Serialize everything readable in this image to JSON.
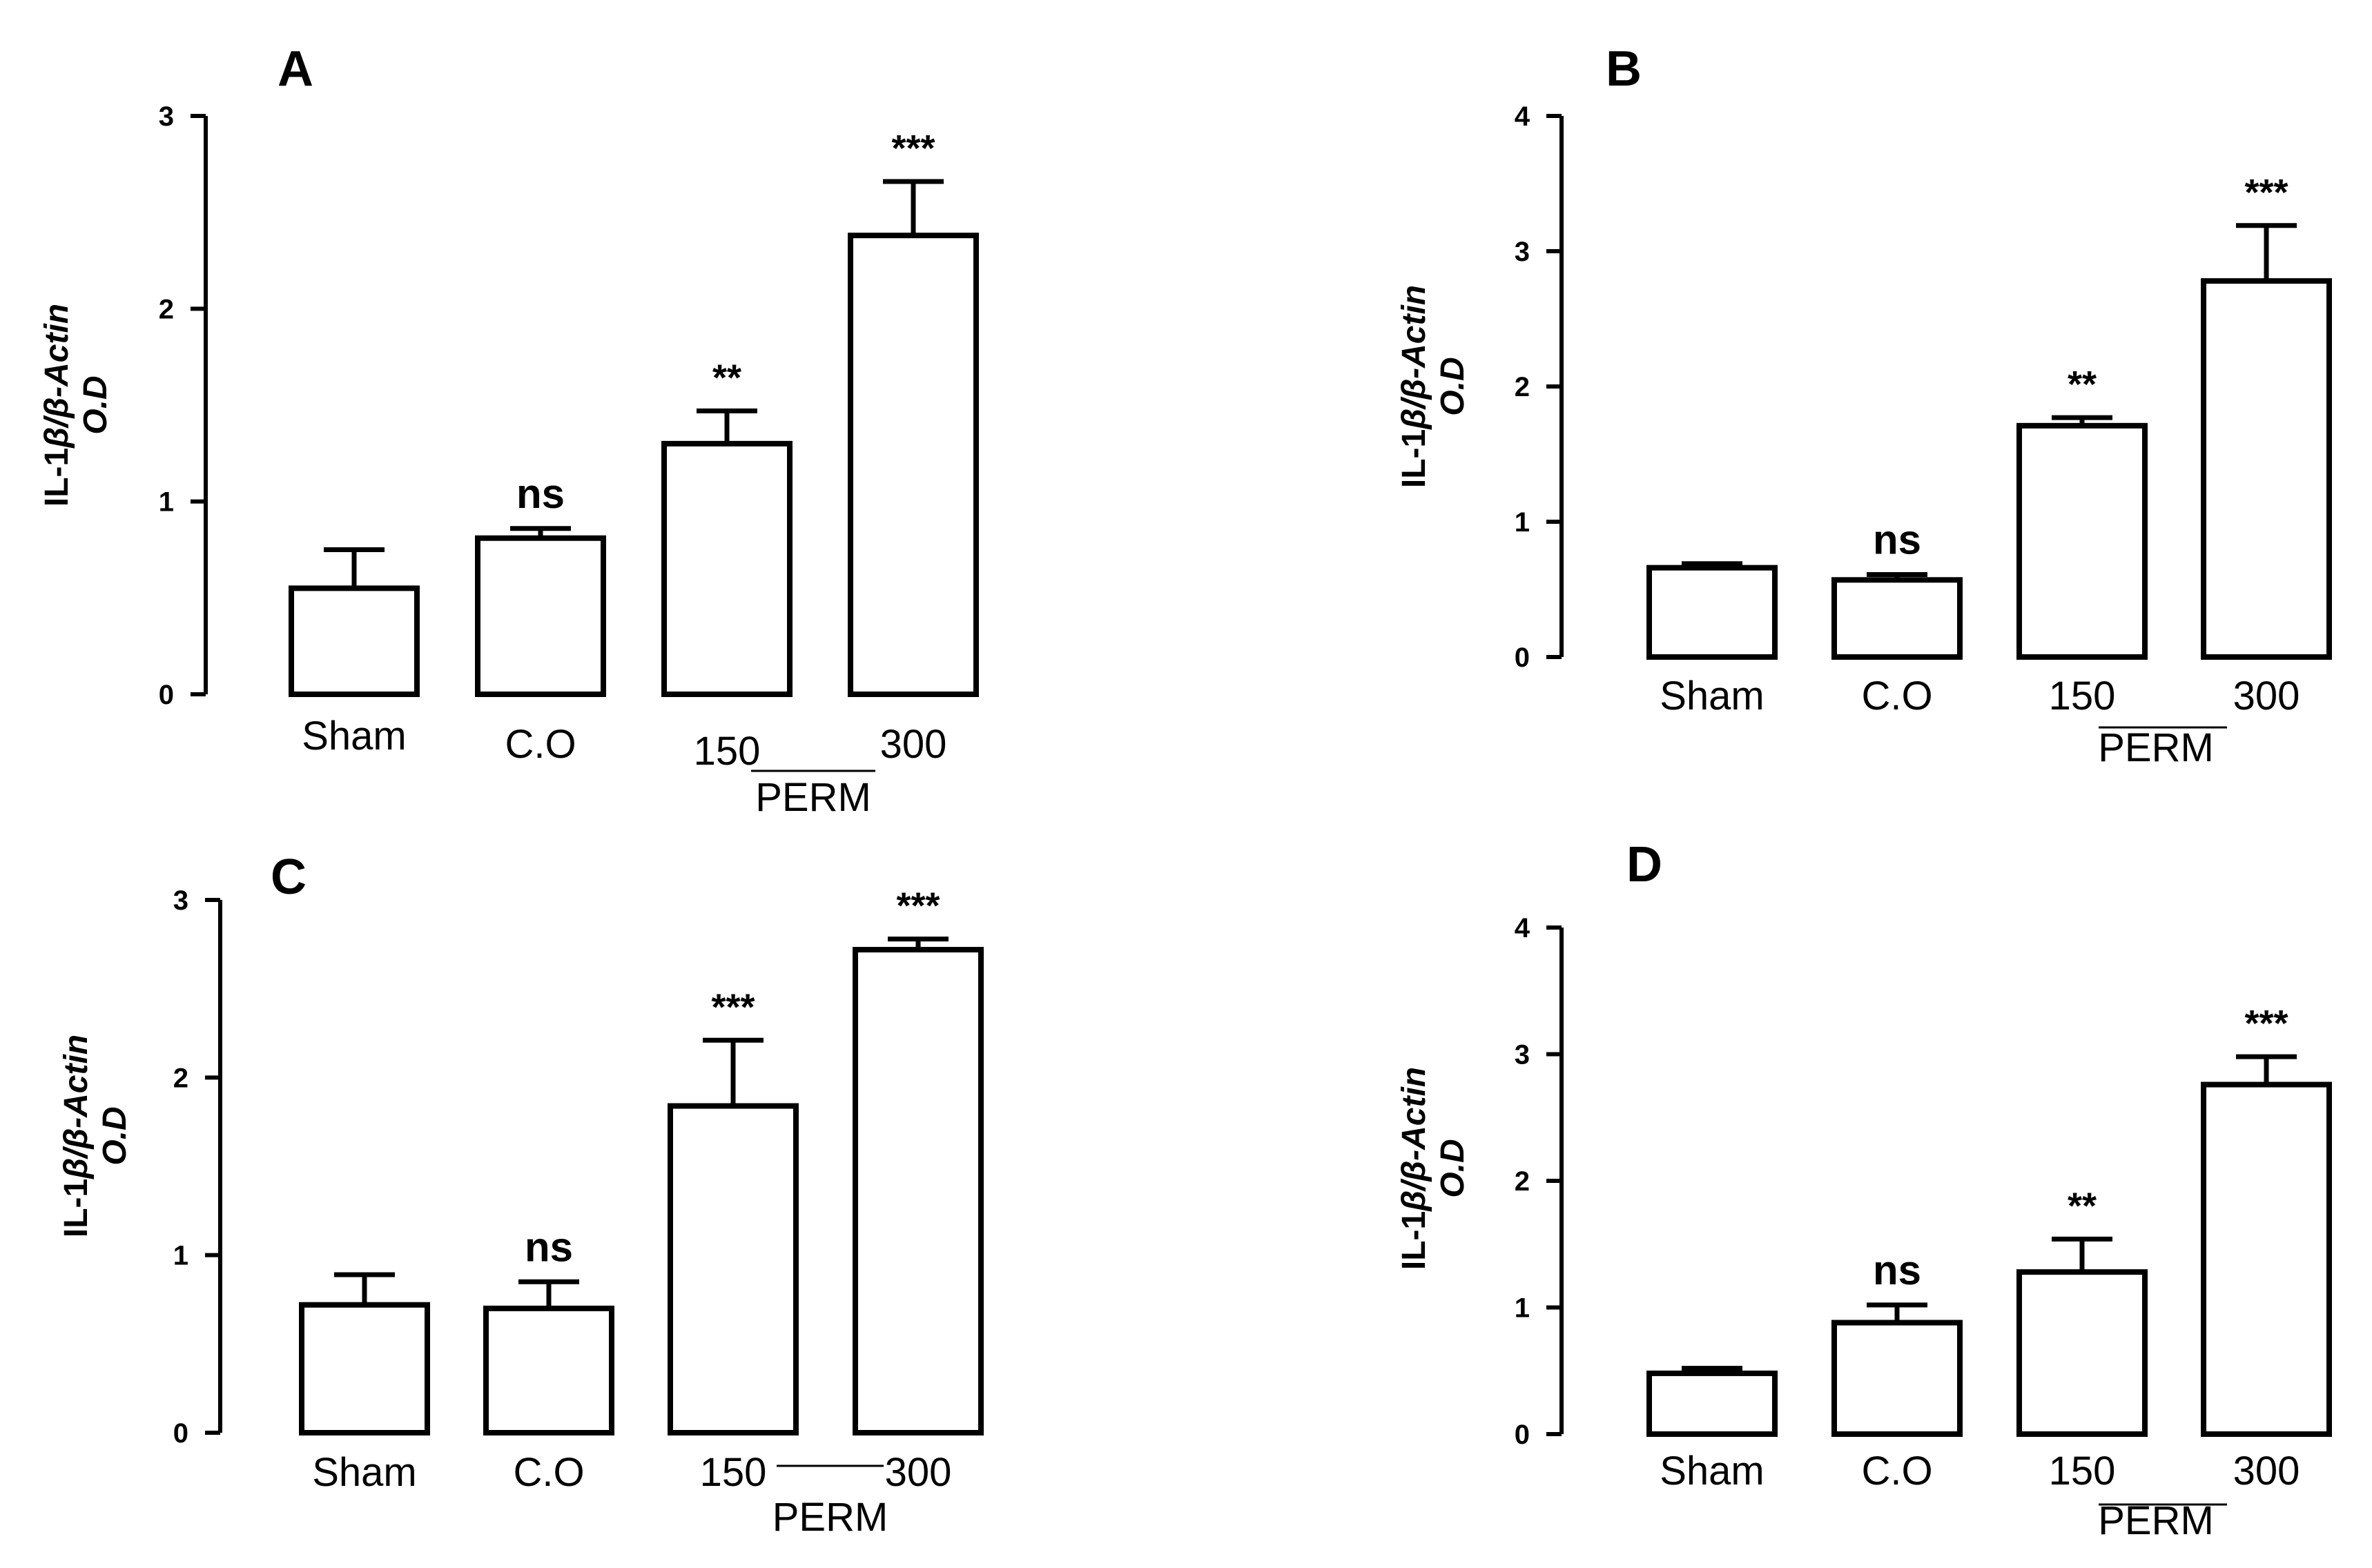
{
  "figure": {
    "group_label": "PERM"
  },
  "chart_data": [
    {
      "type": "bar",
      "panel": "A",
      "ylabel_line1": "IL-1β/β-Actin",
      "ylabel_line2": "O.D",
      "categories": [
        "Sham",
        "C.O",
        "150",
        "300"
      ],
      "values": [
        0.55,
        0.81,
        1.3,
        2.38
      ],
      "errors": [
        0.2,
        0.05,
        0.17,
        0.28
      ],
      "significance": [
        "",
        "ns",
        "**",
        "***"
      ],
      "ylim": [
        0,
        3
      ],
      "yticks": [
        "0",
        "1",
        "2",
        "3"
      ]
    },
    {
      "type": "bar",
      "panel": "B",
      "ylabel_line1": "IL-1β/β-Actin",
      "ylabel_line2": "O.D",
      "categories": [
        "Sham",
        "C.O",
        "150",
        "300"
      ],
      "values": [
        0.66,
        0.57,
        1.71,
        2.78
      ],
      "errors": [
        0.03,
        0.04,
        0.06,
        0.41
      ],
      "significance": [
        "",
        "ns",
        "**",
        "***"
      ],
      "ylim": [
        0,
        4
      ],
      "yticks": [
        "0",
        "1",
        "2",
        "3",
        "4"
      ]
    },
    {
      "type": "bar",
      "panel": "C",
      "ylabel_line1": "IL-1β/β-Actin",
      "ylabel_line2": "O.D",
      "categories": [
        "Sham",
        "C.O",
        "150",
        "300"
      ],
      "values": [
        0.72,
        0.7,
        1.84,
        2.72
      ],
      "errors": [
        0.17,
        0.15,
        0.37,
        0.06
      ],
      "significance": [
        "",
        "ns",
        "***",
        "***"
      ],
      "ylim": [
        0,
        3
      ],
      "yticks": [
        "0",
        "1",
        "2",
        "3"
      ]
    },
    {
      "type": "bar",
      "panel": "D",
      "ylabel_line1": "IL-1β/β-Actin",
      "ylabel_line2": "O.D",
      "categories": [
        "Sham",
        "C.O",
        "150",
        "300"
      ],
      "values": [
        0.48,
        0.88,
        1.28,
        2.76
      ],
      "errors": [
        0.04,
        0.14,
        0.26,
        0.22
      ],
      "significance": [
        "",
        "ns",
        "**",
        "***"
      ],
      "ylim": [
        0,
        4
      ],
      "yticks": [
        "0",
        "1",
        "2",
        "3",
        "4"
      ]
    }
  ]
}
